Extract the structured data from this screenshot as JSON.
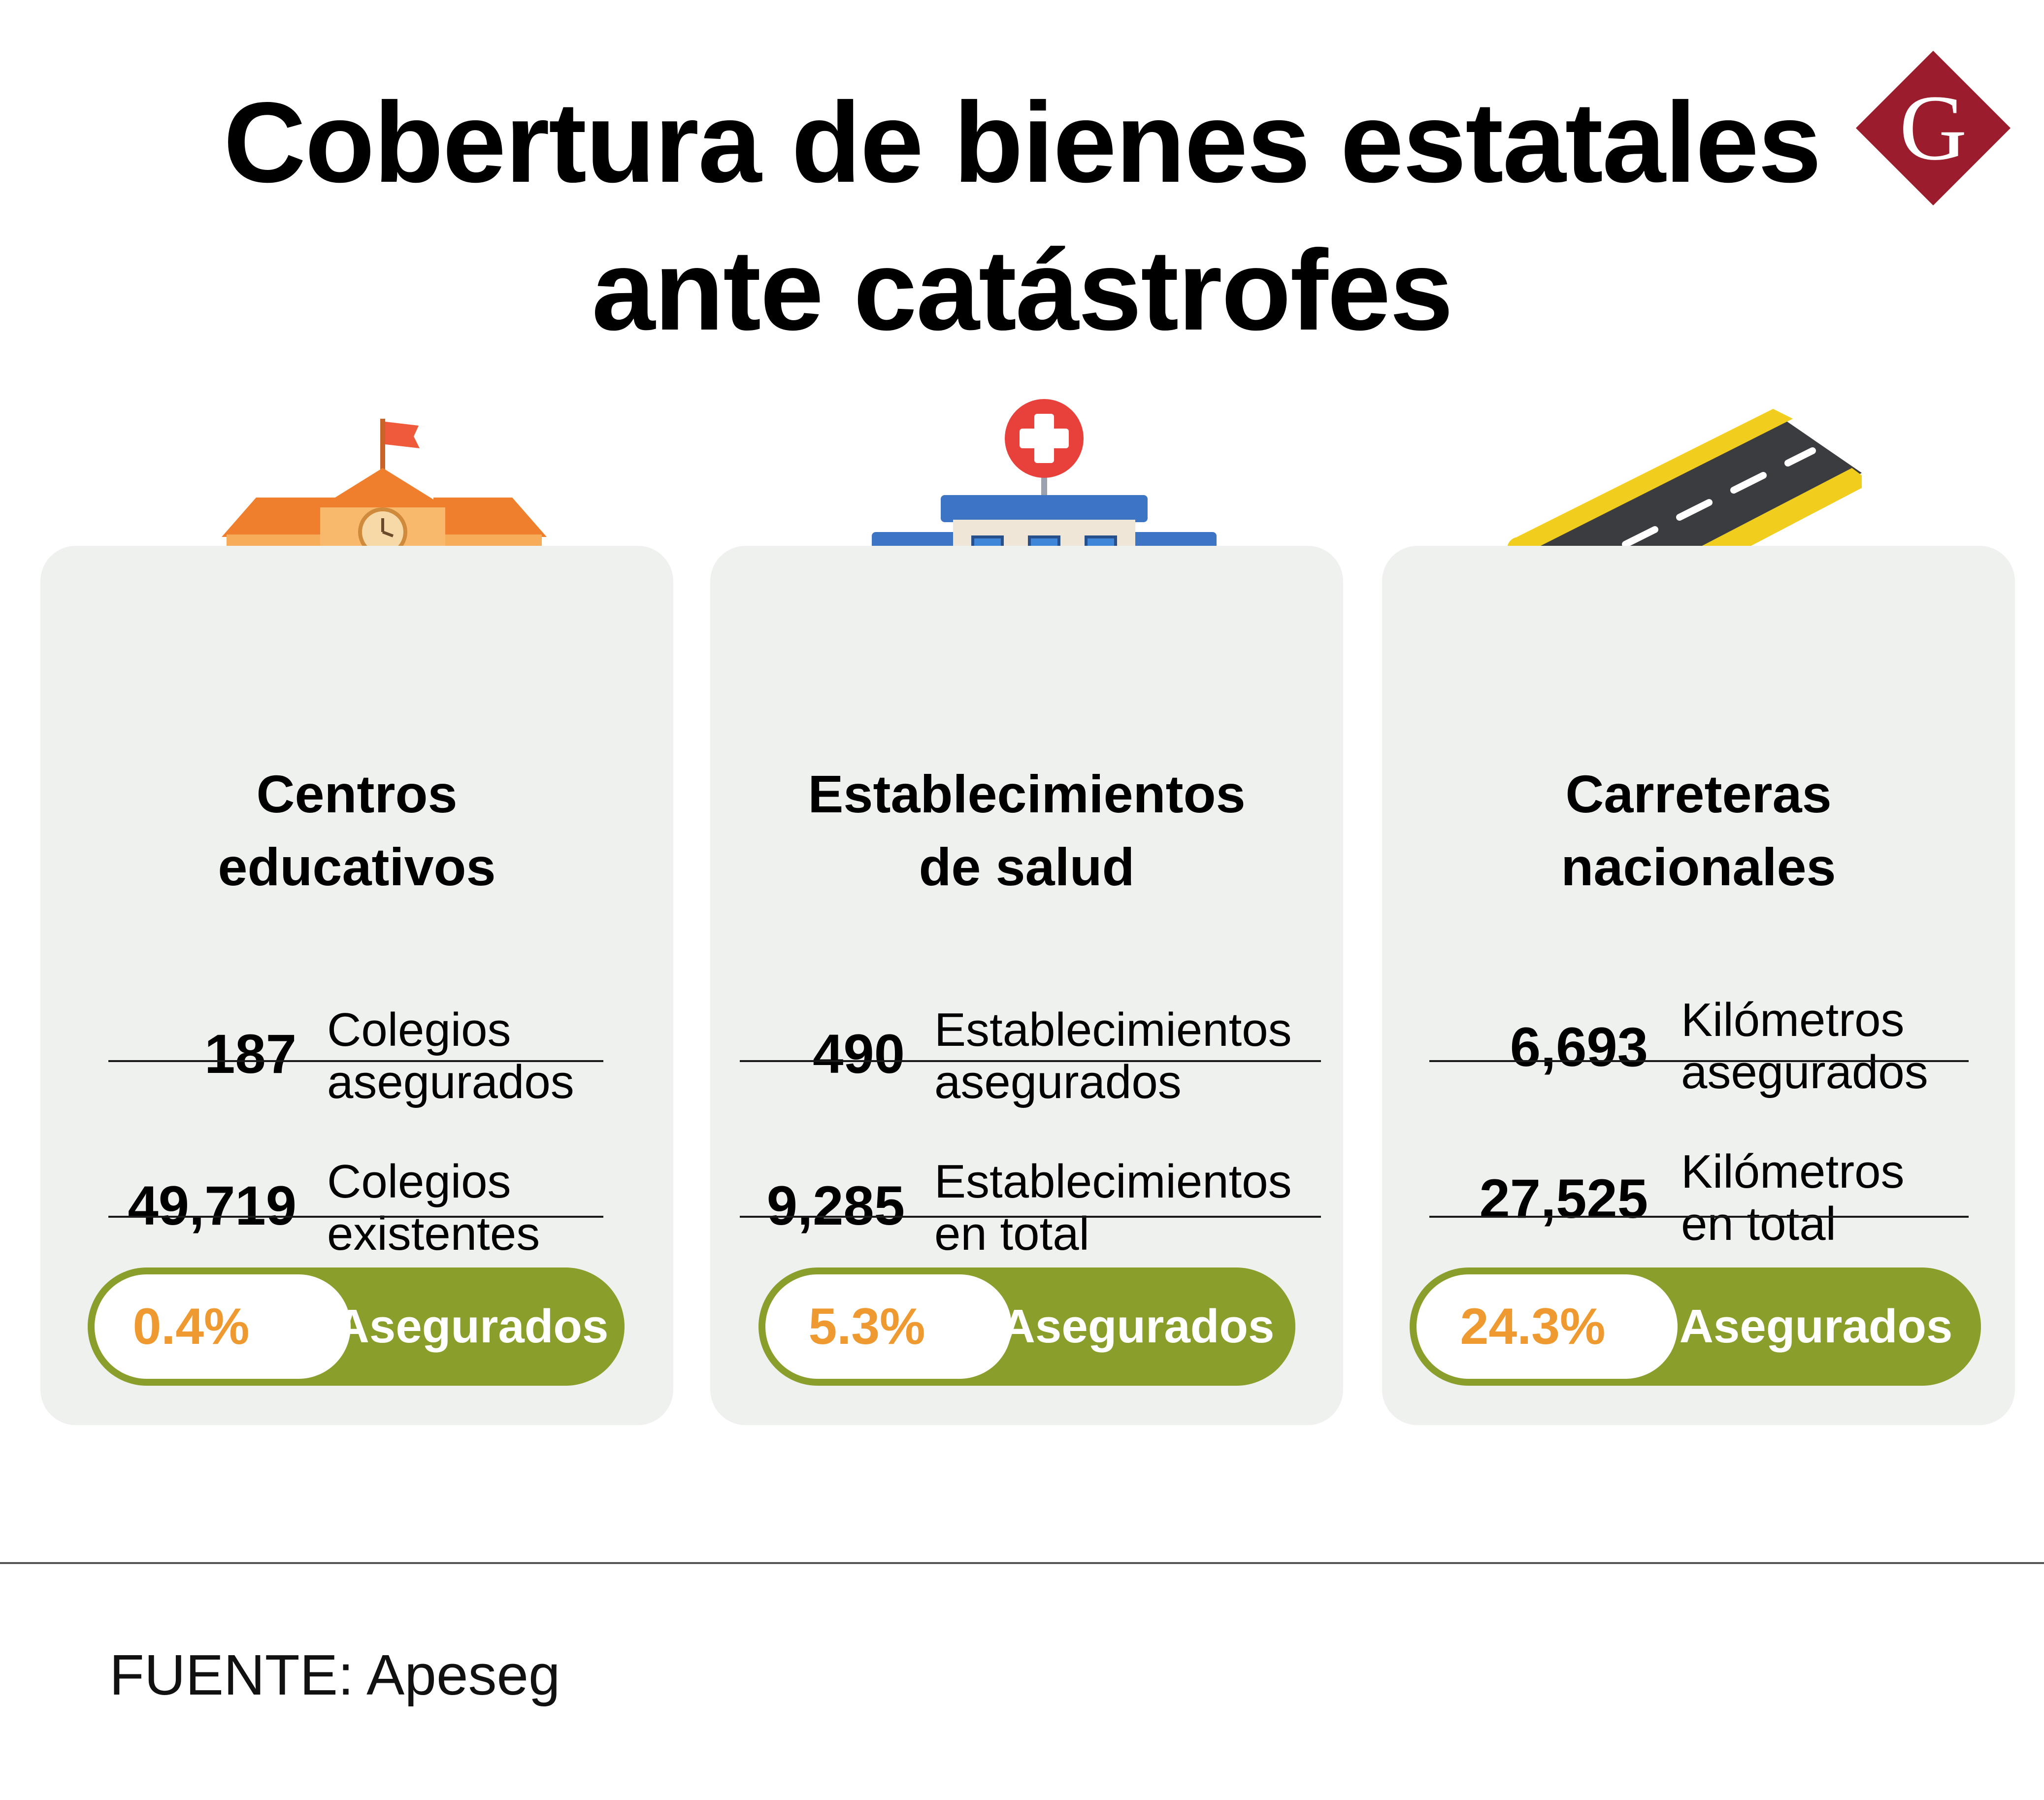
{
  "title": {
    "line1": "Cobertura de bienes estatales",
    "line2": "ante catástrofes"
  },
  "logo": {
    "letter": "G",
    "color": "#9b1c2c",
    "icon": "brand-logo-g"
  },
  "cards": [
    {
      "icon": "school-building-icon",
      "title_lines": [
        "Centros",
        "educativos"
      ],
      "stats": [
        {
          "value": "187",
          "label_lines": [
            "Colegios",
            "asegurados"
          ]
        },
        {
          "value": "49,719",
          "label_lines": [
            "Colegios",
            "existentes"
          ]
        }
      ],
      "percent": "0.4%",
      "percent_label": "Asegurados"
    },
    {
      "icon": "hospital-building-icon",
      "title_lines": [
        "Establecimientos",
        "de salud"
      ],
      "stats": [
        {
          "value": "490",
          "label_lines": [
            "Establecimientos",
            "asegurados"
          ]
        },
        {
          "value": "9,285",
          "label_lines": [
            "Establecimientos",
            "en total"
          ]
        }
      ],
      "percent": "5.3%",
      "percent_label": "Asegurados"
    },
    {
      "icon": "road-icon",
      "title_lines": [
        "Carreteras",
        "nacionales"
      ],
      "stats": [
        {
          "value": "6,693",
          "label_lines": [
            "Kilómetros",
            "asegurados"
          ]
        },
        {
          "value": "27,525",
          "label_lines": [
            "Kilómetros",
            "en total"
          ]
        }
      ],
      "percent": "24.3%",
      "percent_label": "Asegurados"
    }
  ],
  "colors": {
    "card_bg": "#eff1ee",
    "pill_green": "#8a9e2c",
    "percent_orange": "#ee9a30"
  },
  "source": "FUENTE: Apeseg"
}
